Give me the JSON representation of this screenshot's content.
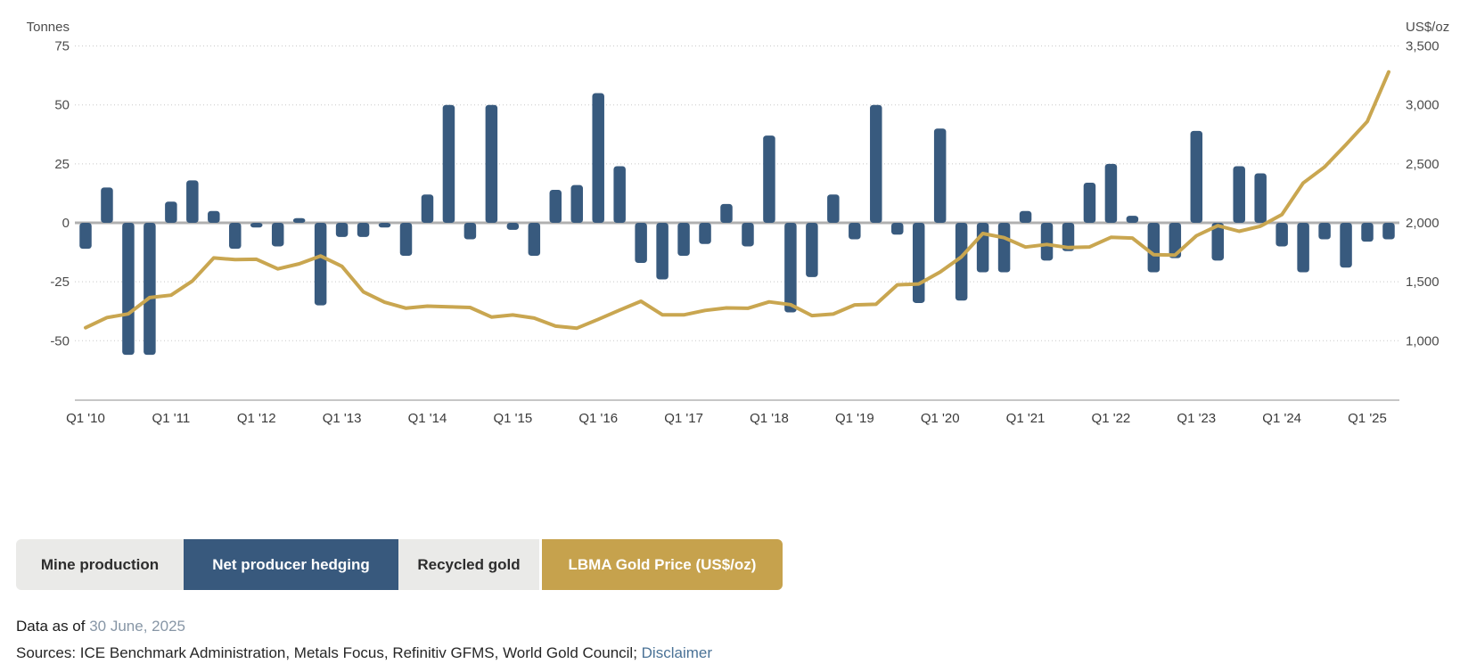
{
  "chart": {
    "left_axis_title": "Tonnes",
    "right_axis_title": "US$/oz"
  },
  "chart_data": {
    "type": "bar",
    "x": [
      "Q1 '10",
      "Q2 '10",
      "Q3 '10",
      "Q4 '10",
      "Q1 '11",
      "Q2 '11",
      "Q3 '11",
      "Q4 '11",
      "Q1 '12",
      "Q2 '12",
      "Q3 '12",
      "Q4 '12",
      "Q1 '13",
      "Q2 '13",
      "Q3 '13",
      "Q4 '13",
      "Q1 '14",
      "Q2 '14",
      "Q3 '14",
      "Q4 '14",
      "Q1 '15",
      "Q2 '15",
      "Q3 '15",
      "Q4 '15",
      "Q1 '16",
      "Q2 '16",
      "Q3 '16",
      "Q4 '16",
      "Q1 '17",
      "Q2 '17",
      "Q3 '17",
      "Q4 '17",
      "Q1 '18",
      "Q2 '18",
      "Q3 '18",
      "Q4 '18",
      "Q1 '19",
      "Q2 '19",
      "Q3 '19",
      "Q4 '19",
      "Q1 '20",
      "Q2 '20",
      "Q3 '20",
      "Q4 '20",
      "Q1 '21",
      "Q2 '21",
      "Q3 '21",
      "Q4 '21",
      "Q1 '22",
      "Q2 '22",
      "Q3 '22",
      "Q4 '22",
      "Q1 '23",
      "Q2 '23",
      "Q3 '23",
      "Q4 '23",
      "Q1 '24",
      "Q2 '24",
      "Q3 '24",
      "Q4 '24",
      "Q1 '25",
      "Q2 '25"
    ],
    "series": [
      {
        "name": "Net producer hedging",
        "type": "bar",
        "axis": "left",
        "unit": "tonnes",
        "color": "#385a7e",
        "values": [
          -11,
          15,
          -56,
          -56,
          9,
          18,
          5,
          -11,
          -2,
          -10,
          2,
          -35,
          -6,
          -6,
          -2,
          -14,
          12,
          50,
          -7,
          50,
          -3,
          -14,
          14,
          16,
          55,
          24,
          -17,
          -24,
          -14,
          -9,
          8,
          -10,
          37,
          -38,
          -23,
          12,
          -7,
          50,
          -5,
          -34,
          40,
          -33,
          -21,
          -21,
          5,
          -16,
          -12,
          17,
          25,
          3,
          -21,
          -15,
          39,
          -16,
          24,
          21,
          -10,
          -21,
          -7,
          -19,
          -8,
          -7
        ]
      },
      {
        "name": "LBMA Gold Price (US$/oz)",
        "type": "line",
        "axis": "right",
        "unit": "US$/oz",
        "color": "#c9a650",
        "values": [
          1110,
          1196,
          1227,
          1366,
          1386,
          1506,
          1702,
          1688,
          1691,
          1609,
          1652,
          1719,
          1631,
          1415,
          1326,
          1276,
          1293,
          1288,
          1282,
          1201,
          1218,
          1192,
          1124,
          1106,
          1181,
          1260,
          1335,
          1220,
          1219,
          1257,
          1278,
          1275,
          1329,
          1306,
          1213,
          1226,
          1304,
          1309,
          1474,
          1481,
          1583,
          1711,
          1909,
          1874,
          1794,
          1816,
          1790,
          1795,
          1877,
          1871,
          1729,
          1726,
          1890,
          1976,
          1928,
          1971,
          2070,
          2338,
          2474,
          2663,
          2860,
          3280
        ]
      }
    ],
    "left_axis": {
      "title": "Tonnes",
      "range": [
        -75,
        75
      ],
      "ticks": [
        75,
        50,
        25,
        0,
        -25,
        -50
      ]
    },
    "right_axis": {
      "title": "US$/oz",
      "range": [
        500,
        3500
      ],
      "ticks": [
        3500,
        3000,
        2500,
        2000,
        1500,
        1000
      ]
    },
    "x_tick_labels": [
      "Q1 '10",
      "Q1 '11",
      "Q1 '12",
      "Q1 '13",
      "Q1 '14",
      "Q1 '15",
      "Q1 '16",
      "Q1 '17",
      "Q1 '18",
      "Q1 '19",
      "Q1 '20",
      "Q1 '21",
      "Q1 '22",
      "Q1 '23",
      "Q1 '24",
      "Q1 '25"
    ],
    "grid": "dotted horizontal",
    "legend_position": "bottom"
  },
  "legend": {
    "buttons": [
      {
        "label": "Mine production",
        "active": false,
        "color": "#eaeae8"
      },
      {
        "label": "Net producer hedging",
        "active": true,
        "color": "#38597d"
      },
      {
        "label": "Recycled gold",
        "active": false,
        "color": "#eaeae8"
      },
      {
        "label": "LBMA Gold Price (US$/oz)",
        "active": true,
        "color": "#c6a24d"
      }
    ]
  },
  "footer": {
    "data_as_of_label": "Data as of ",
    "data_as_of_date": "30 June, 2025",
    "sources_text": "Sources: ICE Benchmark Administration, Metals Focus, Refinitiv GFMS, World Gold Council; ",
    "disclaimer_label": "Disclaimer"
  }
}
